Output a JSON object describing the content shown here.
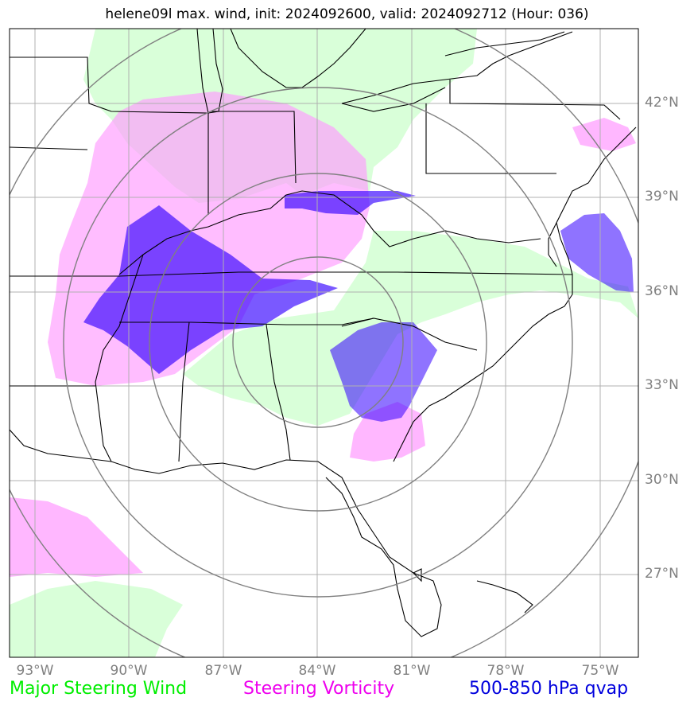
{
  "title": "helene09l max. wind, init: 2024092600, valid: 2024092712 (Hour: 036)",
  "map": {
    "lat_labels": [
      "42°N",
      "39°N",
      "36°N",
      "33°N",
      "30°N",
      "27°N"
    ],
    "lon_labels": [
      "93°W",
      "90°W",
      "87°W",
      "84°W",
      "81°W",
      "78°W",
      "75°W"
    ],
    "colors": {
      "steering_wind": "#ccffcc",
      "steering_vorticity": "#ff99ff",
      "qvap": "#3300ff",
      "range_rings": "#808080",
      "gridlines": "#b0b0b0",
      "coastline": "#000000"
    }
  },
  "legend": {
    "steering_wind": {
      "label": "Major Steering Wind",
      "color": "#00ee00"
    },
    "steering_vorticity": {
      "label": "Steering Vorticity",
      "color": "#ee00ee"
    },
    "qvap": {
      "label": "500-850 hPa qvap",
      "color": "#0000dd"
    }
  }
}
